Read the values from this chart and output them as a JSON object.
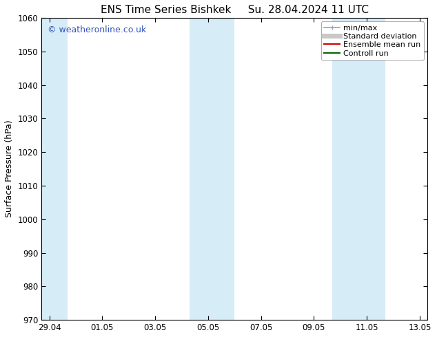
{
  "title_left": "ENS Time Series Bishkek",
  "title_right": "Su. 28.04.2024 11 UTC",
  "ylabel": "Surface Pressure (hPa)",
  "ylim": [
    970,
    1060
  ],
  "yticks": [
    970,
    980,
    990,
    1000,
    1010,
    1020,
    1030,
    1040,
    1050,
    1060
  ],
  "xtick_labels": [
    "29.04",
    "01.05",
    "03.05",
    "05.05",
    "07.05",
    "09.05",
    "11.05",
    "13.05"
  ],
  "xtick_positions": [
    0,
    2,
    4,
    6,
    8,
    10,
    12,
    14
  ],
  "xlim": [
    -0.3,
    14.3
  ],
  "shaded_bands": [
    {
      "x_start": -0.3,
      "x_end": 0.7
    },
    {
      "x_start": 5.3,
      "x_end": 7.0
    },
    {
      "x_start": 10.7,
      "x_end": 12.7
    }
  ],
  "shade_color": "#d6ecf7",
  "background_color": "#ffffff",
  "watermark_text": "© weatheronline.co.uk",
  "watermark_color": "#3355bb",
  "legend_items": [
    {
      "label": "min/max",
      "color": "#a0a0a0",
      "lw": 1.2,
      "ls": "-",
      "type": "minmax"
    },
    {
      "label": "Standard deviation",
      "color": "#c8c8c8",
      "lw": 5,
      "ls": "-",
      "type": "line"
    },
    {
      "label": "Ensemble mean run",
      "color": "#cc0000",
      "lw": 1.5,
      "ls": "-",
      "type": "line"
    },
    {
      "label": "Controll run",
      "color": "#006600",
      "lw": 1.5,
      "ls": "-",
      "type": "line"
    }
  ],
  "title_fontsize": 11,
  "axis_label_fontsize": 9,
  "tick_fontsize": 8.5,
  "legend_fontsize": 8,
  "watermark_fontsize": 9
}
